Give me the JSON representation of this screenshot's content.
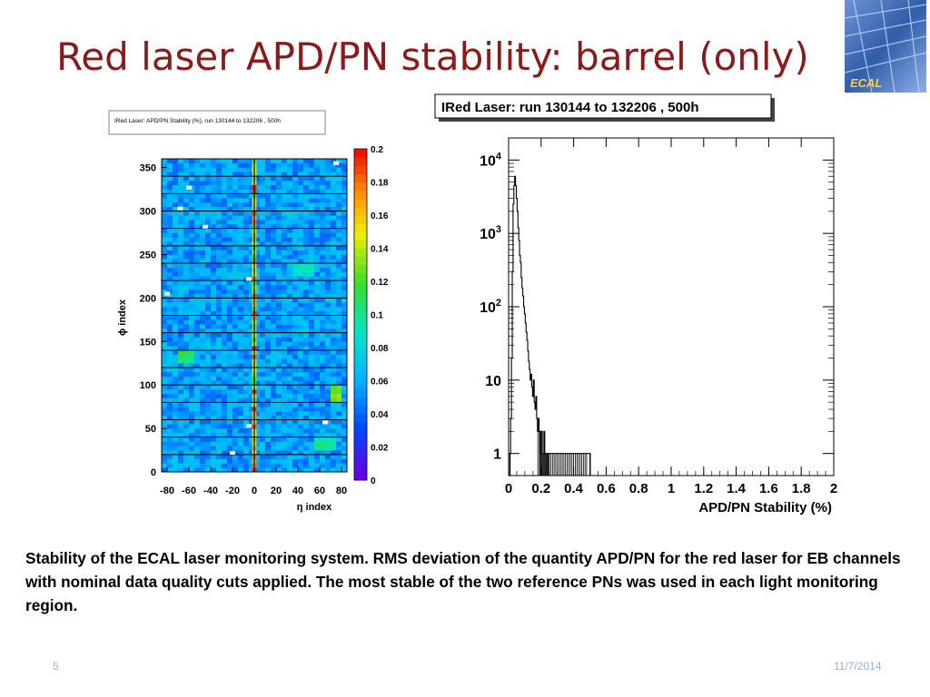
{
  "slide": {
    "title": "Red laser APD/PN stability: barrel (only)",
    "caption": "Stability of the ECAL laser monitoring system. RMS deviation of the quantity APD/PN for the red laser for EB channels with nominal data quality cuts applied. The most stable of the two reference PNs was used in each light monitoring region.",
    "slide_number": "5",
    "date": "11/7/2014",
    "logo_text": "ECAL",
    "colors": {
      "title": "#8b1a1a",
      "footer": "#8db3e2",
      "logo_bg": "#2f5da8"
    }
  },
  "chart_data": [
    {
      "type": "heatmap",
      "title": "IRed Laser: APD/PN Stability (%), run 130144 to 132206 , 500h",
      "xlabel": "η index",
      "ylabel": "ϕ index",
      "xlim": [
        -85,
        85
      ],
      "ylim": [
        0,
        360
      ],
      "xticks": [
        "-80",
        "-60",
        "-40",
        "-20",
        "0",
        "20",
        "40",
        "60",
        "80"
      ],
      "yticks": [
        "0",
        "50",
        "100",
        "150",
        "200",
        "250",
        "300",
        "350"
      ],
      "zlim": [
        0,
        0.2
      ],
      "colorbar_ticks": [
        "0.2",
        "0.18",
        "0.16",
        "0.14",
        "0.12",
        "0.1",
        "0.08",
        "0.06",
        "0.04",
        "0.02",
        "0"
      ],
      "typical_value": 0.055,
      "supermodule_rows_phi": 20,
      "hot_column_eta": 0,
      "hot_regions": [
        {
          "eta": [
            -68,
            -56
          ],
          "phi": [
            125,
            140
          ],
          "value": 0.11
        },
        {
          "eta": [
            58,
            73
          ],
          "phi": [
            25,
            38
          ],
          "value": 0.1
        },
        {
          "eta": [
            70,
            78
          ],
          "phi": [
            80,
            100
          ],
          "value": 0.13
        },
        {
          "eta": [
            35,
            55
          ],
          "phi": [
            225,
            240
          ],
          "value": 0.09
        }
      ],
      "masked_cells": [
        {
          "eta": -68,
          "phi": 303
        },
        {
          "eta": -45,
          "phi": 282
        },
        {
          "eta": -5,
          "phi": 222
        },
        {
          "eta": -80,
          "phi": 205
        },
        {
          "eta": -5,
          "phi": 53
        },
        {
          "eta": -20,
          "phi": 22
        },
        {
          "eta": 65,
          "phi": 57
        },
        {
          "eta": 75,
          "phi": 355
        },
        {
          "eta": -60,
          "phi": 327
        }
      ]
    },
    {
      "type": "line",
      "title": "IRed Laser: run 130144 to 132206 , 500h",
      "xlabel": "APD/PN Stability (%)",
      "ylabel": "",
      "xlim": [
        0,
        2
      ],
      "ylim": [
        0.5,
        20000
      ],
      "log_y": true,
      "xticks": [
        "0",
        "0.2",
        "0.4",
        "0.6",
        "0.8",
        "1",
        "1.2",
        "1.4",
        "1.6",
        "1.8",
        "2"
      ],
      "yticks": [
        {
          "value": 10000,
          "base": "10",
          "exp": "4"
        },
        {
          "value": 1000,
          "base": "10",
          "exp": "3"
        },
        {
          "value": 100,
          "base": "10",
          "exp": "2"
        },
        {
          "value": 10,
          "base": "10",
          "exp": ""
        },
        {
          "value": 1,
          "base": "1",
          "exp": ""
        }
      ],
      "bin_width": 0.005,
      "x": [
        0.01,
        0.015,
        0.02,
        0.025,
        0.03,
        0.035,
        0.04,
        0.045,
        0.05,
        0.055,
        0.06,
        0.065,
        0.07,
        0.075,
        0.08,
        0.085,
        0.09,
        0.095,
        0.1,
        0.105,
        0.11,
        0.115,
        0.12,
        0.125,
        0.13,
        0.135,
        0.14,
        0.145,
        0.15,
        0.155,
        0.16,
        0.165,
        0.17,
        0.175,
        0.18,
        0.185,
        0.19,
        0.195,
        0.2,
        0.205,
        0.21,
        0.215,
        0.22,
        0.225,
        0.23,
        0.235,
        0.24,
        0.245,
        0.25,
        0.26,
        0.27,
        0.28,
        0.29,
        0.3,
        0.31,
        0.32,
        0.33,
        0.34,
        0.35,
        0.36,
        0.37,
        0.38,
        0.39,
        0.4,
        0.41,
        0.42,
        0.43,
        0.44,
        0.45,
        0.46,
        0.47,
        0.48,
        0.5
      ],
      "y": [
        1,
        3,
        20,
        300,
        2500,
        4500,
        6000,
        4500,
        3000,
        2000,
        1200,
        800,
        500,
        400,
        250,
        180,
        140,
        100,
        80,
        60,
        45,
        35,
        25,
        18,
        14,
        10,
        12,
        8,
        6,
        10,
        5,
        4,
        6,
        3,
        2,
        3,
        2,
        1,
        2,
        2,
        1,
        1,
        2,
        1,
        1,
        1,
        1,
        1,
        1,
        1,
        1,
        1,
        1,
        1,
        1,
        1,
        1,
        1,
        1,
        1,
        1,
        1,
        1,
        1,
        1,
        1,
        1,
        1,
        1,
        1,
        1,
        1,
        1
      ],
      "grid": false
    }
  ]
}
